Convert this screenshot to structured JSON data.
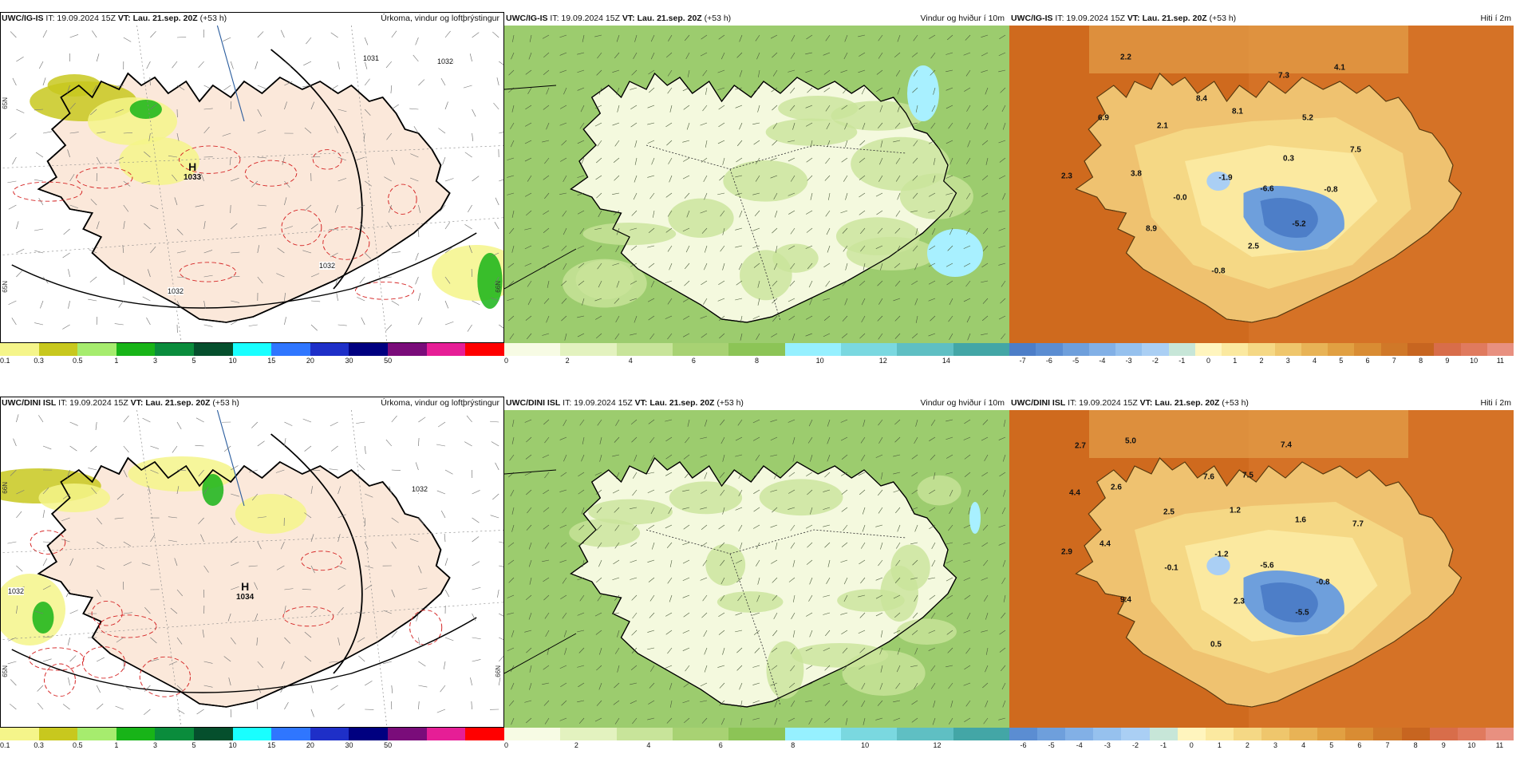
{
  "rows": [
    {
      "model": "UWC/IG-IS",
      "panels": [
        {
          "key": "precip",
          "header_model": "UWC/IG-IS",
          "header_rest": " IT: 19.09.2024 15Z ",
          "vt_label": "VT: Lau. 21.sep. 20Z",
          "lead": " (+53 h)",
          "title": "Úrkoma, vindur og loftþrýstingur",
          "highs": [
            {
              "letter": "H",
              "value": "1033"
            }
          ],
          "isobar_labels": [
            "1031",
            "1032",
            "1032",
            "1032"
          ],
          "coords": [
            "65N",
            "65N",
            "66N"
          ]
        },
        {
          "key": "wind",
          "header_model": "UWC/IG-IS",
          "header_rest": " IT: 19.09.2024 15Z ",
          "vt_label": "VT: Lau. 21.sep. 20Z",
          "lead": " (+53 h)",
          "title": "Vindur og hviður í 10m"
        },
        {
          "key": "temp",
          "header_model": "UWC/IG-IS",
          "header_rest": " IT: 19.09.2024 15Z ",
          "vt_label": "VT: Lau. 21.sep. 20Z",
          "lead": " (+53 h)",
          "title": "Hiti í 2m",
          "labels": [
            "2.2",
            "7.3",
            "4.1",
            "8.4",
            "8.1",
            "6.9",
            "2.1",
            "5.2",
            "0.3",
            "7.5",
            "2.3",
            "3.8",
            "-1.9",
            "-6.6",
            "-0.8",
            "-0.0",
            "-5.2",
            "8.9",
            "2.5",
            "-0.8"
          ]
        }
      ]
    },
    {
      "model": "UWC/DINI ISL",
      "panels": [
        {
          "key": "precip",
          "header_model": "UWC/DINI ISL",
          "header_rest": " IT: 19.09.2024 15Z ",
          "vt_label": "VT: Lau. 21.sep. 20Z",
          "lead": " (+53 h)",
          "title": "Úrkoma, vindur og loftþrýstingur",
          "highs": [
            {
              "letter": "H",
              "value": "1034"
            }
          ],
          "isobar_labels": [
            "1032",
            "1032"
          ],
          "coords": [
            "66N",
            "65N",
            "66N"
          ]
        },
        {
          "key": "wind",
          "header_model": "UWC/DINI ISL",
          "header_rest": " IT: 19.09.2024 15Z ",
          "vt_label": "VT: Lau. 21.sep. 20Z",
          "lead": " (+53 h)",
          "title": "Vindur og hviður í 10m"
        },
        {
          "key": "temp",
          "header_model": "UWC/DINI ISL",
          "header_rest": " IT: 19.09.2024 15Z ",
          "vt_label": "VT: Lau. 21.sep. 20Z",
          "lead": " (+53 h)",
          "title": "Hiti í 2m",
          "labels": [
            "2.7",
            "5.0",
            "7.4",
            "7.6",
            "7.5",
            "4.4",
            "2.6",
            "2.5",
            "1.2",
            "1.6",
            "7.7",
            "4.4",
            "2.9",
            "-0.1",
            "-1.2",
            "-5.6",
            "-0.8",
            "9.4",
            "2.3",
            "-5.5",
            "0.5"
          ]
        }
      ]
    }
  ],
  "legends": {
    "precip": {
      "colors": [
        "#f5f58a",
        "#c8c81e",
        "#a6ec6e",
        "#18b418",
        "#0a8c3c",
        "#054f2d",
        "#19ffff",
        "#2f76ff",
        "#1e2fc8",
        "#000080",
        "#7a0c7a",
        "#e61e96",
        "#ff0000"
      ],
      "ticks": [
        "0.1",
        "0.3",
        "0.5",
        "1",
        "3",
        "5",
        "10",
        "15",
        "20",
        "30",
        "50"
      ]
    },
    "wind_top": {
      "colors": [
        "#f7fbe4",
        "#e3f2bf",
        "#c8e49a",
        "#a8d273",
        "#8cc456",
        "#96f0ff",
        "#7ad8e0",
        "#5fbfc3",
        "#43a6a6"
      ],
      "ticks": [
        "0",
        "2",
        "4",
        "6",
        "8",
        "10",
        "12",
        "14"
      ]
    },
    "wind_bottom": {
      "colors": [
        "#f7fbe4",
        "#e3f2bf",
        "#c8e49a",
        "#a8d273",
        "#8cc456",
        "#96f0ff",
        "#7ad8e0",
        "#5fbfc3",
        "#43a6a6"
      ],
      "ticks": [
        "0",
        "2",
        "4",
        "6",
        "8",
        "10",
        "12"
      ]
    },
    "temp_top": {
      "colors": [
        "#4d7ec8",
        "#5b8dd2",
        "#6e9fdc",
        "#82b0e6",
        "#96c1ee",
        "#aacff4",
        "#c7e6d8",
        "#fff5be",
        "#fbe9a0",
        "#f5d885",
        "#efc66c",
        "#e8b356",
        "#e1a042",
        "#d98c33",
        "#d07828",
        "#c76520",
        "#d86d4a",
        "#e07a5e",
        "#e89080"
      ],
      "ticks": [
        "-7",
        "-6",
        "-5",
        "-4",
        "-3",
        "-2",
        "-1",
        "0",
        "1",
        "2",
        "3",
        "4",
        "5",
        "6",
        "7",
        "8",
        "9",
        "10",
        "11"
      ]
    },
    "temp_bottom": {
      "colors": [
        "#5b8dd2",
        "#6e9fdc",
        "#82b0e6",
        "#96c1ee",
        "#aacff4",
        "#c7e6d8",
        "#fff5be",
        "#fbe9a0",
        "#f5d885",
        "#efc66c",
        "#e8b356",
        "#e1a042",
        "#d98c33",
        "#d07828",
        "#c76520",
        "#d86d4a",
        "#e07a5e",
        "#e89080"
      ],
      "ticks": [
        "-6",
        "-5",
        "-4",
        "-3",
        "-2",
        "-1",
        "0",
        "1",
        "2",
        "3",
        "4",
        "5",
        "6",
        "7",
        "8",
        "9",
        "10",
        "11"
      ]
    }
  }
}
